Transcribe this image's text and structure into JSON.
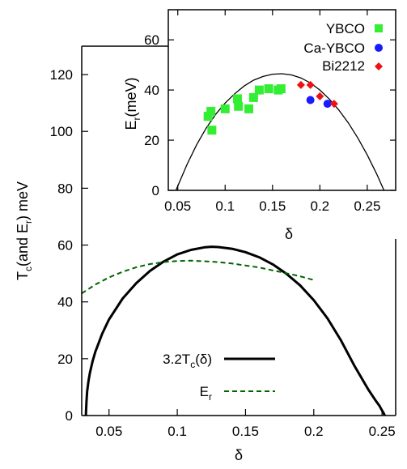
{
  "chart_data": [
    {
      "panel": "main",
      "type": "line",
      "xlabel": "δ",
      "ylabel": {
        "main": "T",
        "sub": "c",
        "rest1": "(and E",
        "sub2": "r",
        "rest2": ") meV"
      },
      "xlim": [
        0.03,
        0.26
      ],
      "ylim": [
        0,
        130
      ],
      "xticks": [
        0.05,
        0.1,
        0.15,
        0.2,
        0.25
      ],
      "xtick_labels": [
        "0.05",
        "0.1",
        "0.15",
        "0.2",
        "0.25"
      ],
      "yticks": [
        0,
        20,
        40,
        60,
        80,
        100,
        120
      ],
      "ytick_labels": [
        "0",
        "20",
        "40",
        "60",
        "80",
        "100",
        "120"
      ],
      "grid": false,
      "legend_position": "bottom-center",
      "series": [
        {
          "name": {
            "main": "3.2T",
            "sub": "c",
            "rest": "(δ)"
          },
          "style": "solid",
          "color": "#000000",
          "x": [
            0.033,
            0.0335,
            0.034,
            0.035,
            0.036,
            0.038,
            0.04,
            0.045,
            0.05,
            0.06,
            0.07,
            0.08,
            0.09,
            0.1,
            0.11,
            0.12,
            0.125,
            0.13,
            0.14,
            0.15,
            0.16,
            0.17,
            0.18,
            0.19,
            0.2,
            0.21,
            0.22,
            0.23,
            0.24,
            0.245,
            0.248,
            0.25,
            0.251,
            0.2515,
            0.252
          ],
          "y": [
            0,
            5,
            8.5,
            12.2,
            15,
            19.2,
            22.5,
            28.8,
            33.8,
            41.2,
            46.6,
            50.9,
            54.2,
            56.7,
            58.3,
            59.2,
            59.4,
            59.3,
            58.7,
            57.5,
            55.7,
            53.2,
            49.9,
            45.8,
            40.6,
            34.2,
            26.4,
            17.3,
            9.1,
            5.5,
            3.5,
            1.8,
            1.0,
            0.5,
            0
          ]
        },
        {
          "name": {
            "main": "E",
            "sub": "r",
            "rest": ""
          },
          "style": "dashed",
          "color": "#006400",
          "x": [
            0.03,
            0.04,
            0.05,
            0.06,
            0.07,
            0.08,
            0.09,
            0.1,
            0.11,
            0.12,
            0.13,
            0.14,
            0.15,
            0.16,
            0.17,
            0.18,
            0.19,
            0.2
          ],
          "y": [
            43,
            46.1,
            48.6,
            50.6,
            52.2,
            53.3,
            54,
            54.4,
            54.5,
            54.3,
            54,
            53.5,
            52.8,
            52.1,
            51.1,
            50.1,
            49,
            47.7
          ]
        }
      ]
    },
    {
      "panel": "inset",
      "type": "scatter",
      "xlabel": "δ",
      "ylabel": {
        "main": "E",
        "sub": "r",
        "rest": "(meV)"
      },
      "xlim": [
        0.04,
        0.28
      ],
      "ylim": [
        0,
        72
      ],
      "xticks": [
        0.05,
        0.1,
        0.15,
        0.2,
        0.25
      ],
      "xtick_labels": [
        "0.05",
        "0.1",
        "0.15",
        "0.2",
        "0.25"
      ],
      "yticks": [
        0,
        20,
        40,
        60
      ],
      "ytick_labels": [
        "0",
        "20",
        "40",
        "60"
      ],
      "grid": false,
      "legend_position": "top-right",
      "curve": {
        "color": "#000000",
        "x": [
          0.048,
          0.06,
          0.07,
          0.08,
          0.09,
          0.1,
          0.11,
          0.12,
          0.13,
          0.14,
          0.15,
          0.16,
          0.17,
          0.18,
          0.19,
          0.2,
          0.21,
          0.22,
          0.23,
          0.24,
          0.25,
          0.26,
          0.27
        ],
        "y": [
          0,
          10.5,
          18.2,
          24.8,
          30.3,
          34.8,
          38.5,
          41.6,
          43.9,
          45.4,
          46.3,
          46.5,
          46,
          44.8,
          42.8,
          40,
          36.4,
          32,
          26.9,
          20.9,
          14.1,
          6.5,
          -2
        ]
      },
      "series": [
        {
          "name": "YBCO",
          "marker": "square",
          "color": "#33ee33",
          "x": [
            0.082,
            0.085,
            0.086,
            0.1,
            0.113,
            0.114,
            0.125,
            0.13,
            0.136,
            0.146,
            0.156,
            0.159
          ],
          "y": [
            29.5,
            31.5,
            24,
            32.5,
            36.5,
            33.5,
            32.5,
            37,
            40,
            40.5,
            40,
            40.5
          ]
        },
        {
          "name": "Ca-YBCO",
          "marker": "circle",
          "color": "#1a1aff",
          "x": [
            0.19,
            0.208
          ],
          "y": [
            36,
            34.5
          ]
        },
        {
          "name": "Bi2212",
          "marker": "diamond",
          "color": "#ee1111",
          "x": [
            0.18,
            0.19,
            0.2,
            0.215
          ],
          "y": [
            42,
            42,
            37.5,
            34.5
          ]
        }
      ]
    }
  ]
}
